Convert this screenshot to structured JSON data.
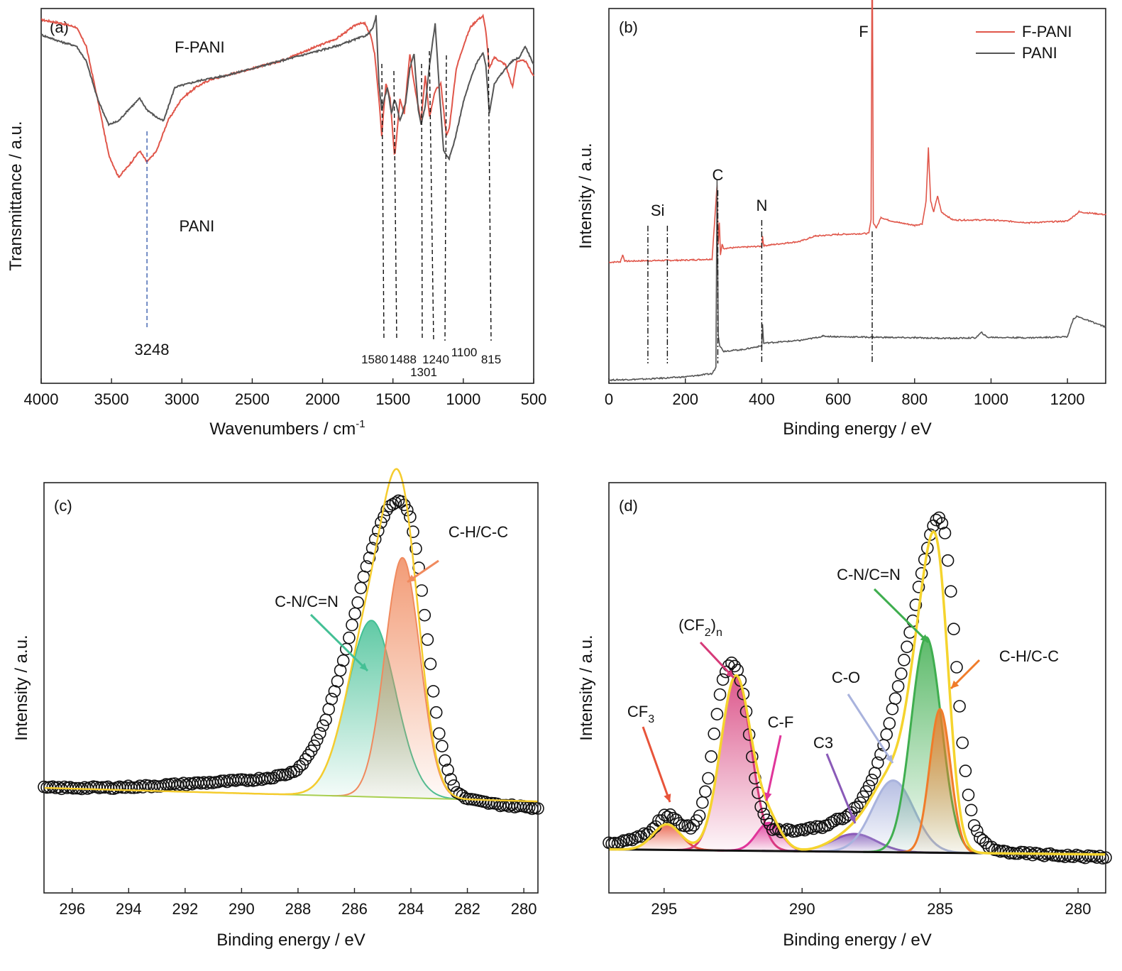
{
  "figure": {
    "panels": [
      "(a)",
      "(b)",
      "(c)",
      "(d)"
    ]
  },
  "chart_data": [
    {
      "panel": "(a)",
      "type": "line",
      "xlabel": "Wavenumbers / cm",
      "xlabel_sup": "-1",
      "ylabel": "Transmittance / a.u.",
      "xlim": [
        4000,
        500
      ],
      "x_reversed": true,
      "xticks": [
        4000,
        3500,
        3000,
        2500,
        2000,
        1500,
        1000,
        500
      ],
      "y_ticks_shown": false,
      "grid": false,
      "series": [
        {
          "name": "F-PANI",
          "color": "#e0564a",
          "x": [
            4000,
            3850,
            3750,
            3680,
            3600,
            3520,
            3450,
            3380,
            3300,
            3248,
            3180,
            3100,
            3000,
            2900,
            2800,
            2700,
            2500,
            2300,
            2100,
            1900,
            1750,
            1700,
            1660,
            1630,
            1600,
            1580,
            1550,
            1520,
            1488,
            1450,
            1420,
            1380,
            1350,
            1301,
            1270,
            1240,
            1200,
            1160,
            1120,
            1100,
            1050,
            1000,
            950,
            900,
            860,
            840,
            815,
            780,
            700,
            650,
            620,
            560,
            500
          ],
          "y": [
            97,
            96,
            95,
            90,
            76,
            61,
            55,
            58,
            62,
            59,
            62,
            70,
            76,
            79,
            81,
            82,
            84,
            86,
            89,
            92,
            96,
            96,
            93,
            88,
            76,
            66,
            80,
            76,
            60,
            76,
            72,
            88,
            80,
            70,
            82,
            71,
            78,
            80,
            66,
            68,
            84,
            90,
            95,
            97,
            98,
            94,
            84,
            87,
            85,
            79,
            86,
            86,
            82
          ]
        },
        {
          "name": "PANI",
          "color": "#555555",
          "x": [
            4000,
            3850,
            3750,
            3680,
            3600,
            3520,
            3450,
            3380,
            3300,
            3248,
            3180,
            3130,
            3050,
            2950,
            2850,
            2700,
            2500,
            2300,
            2100,
            1900,
            1750,
            1680,
            1640,
            1620,
            1600,
            1580,
            1540,
            1510,
            1488,
            1450,
            1410,
            1380,
            1350,
            1320,
            1301,
            1270,
            1240,
            1200,
            1170,
            1140,
            1100,
            1060,
            1000,
            950,
            900,
            860,
            840,
            815,
            780,
            700,
            650,
            600,
            560,
            500
          ],
          "y": [
            93,
            91,
            90,
            86,
            76,
            69,
            70,
            73,
            76,
            73,
            71,
            70,
            79,
            80,
            81,
            82,
            84,
            86,
            88,
            90,
            92,
            93,
            95,
            98,
            80,
            73,
            79,
            72,
            76,
            70,
            75,
            84,
            88,
            73,
            69,
            74,
            85,
            96,
            78,
            62,
            60,
            65,
            75,
            81,
            86,
            88,
            85,
            72,
            80,
            84,
            86,
            87,
            90,
            85
          ]
        }
      ],
      "curve_labels": [
        {
          "text": "F-PANI",
          "x": 3050
        },
        {
          "text": "PANI",
          "x": 3070
        }
      ],
      "peak_markers": [
        {
          "label": "3248",
          "x": 3248,
          "style": "dashed-blue"
        },
        {
          "label": "1580",
          "x": 1580,
          "style": "dashed-black"
        },
        {
          "label": "1488",
          "x": 1488,
          "style": "dashed-black"
        },
        {
          "label": "1301",
          "x": 1301,
          "style": "dashed-black"
        },
        {
          "label": "1240",
          "x": 1240,
          "style": "dashed-black"
        },
        {
          "label": "1100",
          "x": 1100,
          "style": "dashed-black"
        },
        {
          "label": "815",
          "x": 815,
          "style": "dashed-black"
        }
      ]
    },
    {
      "panel": "(b)",
      "type": "line",
      "xlabel": "Binding energy / eV",
      "ylabel": "Intensity / a.u.",
      "xlim": [
        0,
        1300
      ],
      "xticks": [
        0,
        200,
        400,
        600,
        800,
        1000,
        1200
      ],
      "y_ticks_shown": false,
      "grid": false,
      "legend": {
        "position": "top-right",
        "entries": [
          "F-PANI",
          "PANI"
        ]
      },
      "series": [
        {
          "name": "F-PANI",
          "color": "#e0564a",
          "x": [
            0,
            30,
            36,
            42,
            100,
            200,
            270,
            283,
            286,
            289,
            292,
            296,
            300,
            320,
            400,
            402,
            405,
            500,
            540,
            560,
            600,
            680,
            686,
            689,
            692,
            700,
            712,
            730,
            760,
            800,
            820,
            830,
            836,
            842,
            850,
            860,
            870,
            900,
            1000,
            1100,
            1200,
            1230,
            1300
          ],
          "y": [
            0.6,
            0.7,
            2.0,
            0.8,
            0.9,
            1.0,
            1.2,
            15.0,
            4.0,
            8.0,
            2.0,
            4.0,
            3.2,
            3.3,
            3.6,
            5.5,
            3.7,
            4.5,
            5.5,
            5.6,
            5.8,
            6.0,
            8.5,
            66.0,
            8.0,
            7.0,
            9.0,
            8.5,
            8.0,
            7.5,
            7.8,
            12.0,
            22.0,
            12.0,
            10.0,
            13.0,
            10.0,
            8.5,
            8.5,
            8.0,
            8.3,
            10.0,
            9.5
          ]
        },
        {
          "name": "PANI",
          "color": "#555555",
          "x": [
            0,
            100,
            200,
            270,
            280,
            283,
            286,
            290,
            300,
            350,
            400,
            402,
            405,
            500,
            540,
            560,
            600,
            700,
            800,
            900,
            960,
            975,
            990,
            1100,
            1200,
            1215,
            1225,
            1300
          ],
          "y": [
            0.6,
            0.8,
            1.2,
            1.8,
            3.0,
            38.0,
            9.0,
            7.0,
            6.0,
            6.3,
            7.0,
            11.0,
            7.5,
            8.0,
            8.5,
            8.8,
            8.7,
            8.6,
            8.5,
            8.4,
            8.5,
            9.5,
            8.6,
            8.5,
            8.7,
            12.0,
            12.5,
            10.5
          ]
        }
      ],
      "element_markers": [
        {
          "label": "Si",
          "x": [
            102,
            153
          ]
        },
        {
          "label": "C",
          "x": [
            285
          ]
        },
        {
          "label": "N",
          "x": [
            400
          ]
        },
        {
          "label": "F",
          "x": [
            689
          ]
        }
      ]
    },
    {
      "panel": "(c)",
      "type": "line",
      "xlabel": "Binding energy / eV",
      "ylabel": "Intensity / a.u.",
      "xlim": [
        297,
        279.5
      ],
      "x_reversed": true,
      "xticks": [
        296,
        294,
        292,
        290,
        288,
        286,
        284,
        282,
        280
      ],
      "y_ticks_shown": false,
      "grid": false,
      "background_linear": {
        "x": [
          297,
          279.5
        ],
        "y": [
          5.6,
          2.3
        ]
      },
      "fits": [
        {
          "label": "C-N/C=N",
          "center": 285.4,
          "height": 43.0,
          "sigma": 0.85,
          "color": "#44c095"
        },
        {
          "label": "C-H/C-C",
          "center": 284.3,
          "height": 58.5,
          "sigma": 0.62,
          "color": "#f08a5e"
        }
      ],
      "envelope_color": "#f5cc2e",
      "baseline_color": "#a8cf50",
      "measured_points": {
        "marker": "open-circle",
        "x": [
          297.0,
          296.5,
          296.0,
          295.5,
          295.0,
          294.5,
          294.0,
          293.5,
          293.0,
          292.5,
          292.0,
          291.5,
          291.0,
          290.5,
          290.0,
          289.5,
          289.0,
          288.5,
          288.2,
          288.0,
          287.8,
          287.6,
          287.4,
          287.2,
          287.0,
          286.8,
          286.6,
          286.4,
          286.2,
          286.0,
          285.8,
          285.6,
          285.4,
          285.2,
          285.0,
          284.8,
          284.6,
          284.4,
          284.2,
          284.0,
          283.8,
          283.6,
          283.4,
          283.2,
          283.0,
          282.8,
          282.6,
          282.4,
          282.2,
          282.0,
          281.5,
          281.0,
          280.5,
          280.0,
          279.5
        ],
        "y": [
          0.0,
          0.1,
          0.2,
          0.3,
          0.4,
          0.6,
          0.8,
          1.0,
          1.3,
          1.6,
          1.9,
          2.2,
          2.5,
          2.8,
          3.1,
          3.5,
          4.0,
          4.8,
          5.5,
          6.5,
          8.0,
          10.0,
          12.5,
          15.5,
          19.0,
          23.5,
          28.0,
          33.0,
          38.5,
          44.0,
          50.0,
          55.5,
          60.0,
          64.5,
          68.0,
          70.5,
          72.0,
          72.5,
          71.5,
          68.0,
          60.0,
          50.0,
          38.0,
          26.0,
          16.0,
          9.5,
          5.0,
          2.0,
          0.8,
          0.1,
          -0.5,
          -1.0,
          -1.2,
          -1.4,
          -1.6
        ]
      }
    },
    {
      "panel": "(d)",
      "type": "line",
      "xlabel": "Binding energy / eV",
      "ylabel": "Intensity / a.u.",
      "xlim": [
        297,
        279
      ],
      "x_reversed": true,
      "xticks": [
        295,
        290,
        285,
        280
      ],
      "y_ticks_shown": false,
      "grid": false,
      "background_linear": {
        "x": [
          297,
          279
        ],
        "y": [
          0.5,
          -0.5
        ]
      },
      "fits": [
        {
          "label": "CF3",
          "label_sub": "3",
          "center": 294.9,
          "height": 5.0,
          "sigma": 0.5,
          "color": "#e8543a"
        },
        {
          "label": "(CF2)n",
          "label_sub": "2",
          "label_sub2": "n",
          "center": 292.4,
          "height": 34.0,
          "sigma": 0.55,
          "color": "#d63a78"
        },
        {
          "label": "C-F",
          "center": 291.2,
          "height": 5.5,
          "sigma": 0.45,
          "color": "#e0359a"
        },
        {
          "label": "C3",
          "center": 288.1,
          "height": 3.5,
          "sigma": 0.8,
          "color": "#8a5ab8"
        },
        {
          "label": "C-O",
          "center": 286.7,
          "height": 14.0,
          "sigma": 0.75,
          "color": "#a9b3dd"
        },
        {
          "label": "C-N/C=N",
          "center": 285.5,
          "height": 42.0,
          "sigma": 0.55,
          "color": "#3fae4f"
        },
        {
          "label": "C-H/C-C",
          "center": 285.0,
          "height": 28.0,
          "sigma": 0.38,
          "color": "#f07c2a"
        }
      ],
      "envelope_color": "#f5d42e",
      "baseline_color": "#111111",
      "measured_points": {
        "marker": "open-circle",
        "x": [
          297.0,
          296.5,
          296.0,
          295.5,
          295.2,
          295.0,
          294.8,
          294.6,
          294.3,
          294.0,
          293.7,
          293.4,
          293.1,
          292.9,
          292.7,
          292.5,
          292.3,
          292.1,
          291.9,
          291.7,
          291.5,
          291.3,
          291.1,
          290.9,
          290.6,
          290.3,
          290.0,
          289.6,
          289.2,
          288.8,
          288.4,
          288.0,
          287.7,
          287.4,
          287.1,
          286.8,
          286.5,
          286.2,
          286.0,
          285.8,
          285.6,
          285.4,
          285.2,
          285.0,
          284.8,
          284.6,
          284.4,
          284.2,
          284.0,
          283.8,
          283.5,
          283.0,
          282.0,
          281.0,
          280.0,
          279.0
        ],
        "y": [
          1.0,
          1.5,
          2.2,
          3.5,
          5.5,
          6.5,
          6.8,
          6.0,
          4.5,
          4.5,
          7.0,
          14.0,
          26.0,
          33.0,
          36.0,
          36.5,
          35.0,
          30.0,
          22.0,
          14.0,
          9.0,
          6.0,
          4.5,
          4.0,
          4.0,
          4.0,
          4.2,
          4.5,
          5.0,
          6.0,
          7.0,
          9.0,
          11.5,
          15.0,
          20.0,
          26.0,
          33.0,
          40.0,
          45.0,
          51.0,
          56.0,
          61.0,
          64.5,
          65.5,
          62.0,
          50.0,
          36.0,
          22.0,
          12.0,
          6.0,
          2.5,
          0.5,
          0.0,
          -0.2,
          -0.4,
          -0.5
        ]
      }
    }
  ]
}
